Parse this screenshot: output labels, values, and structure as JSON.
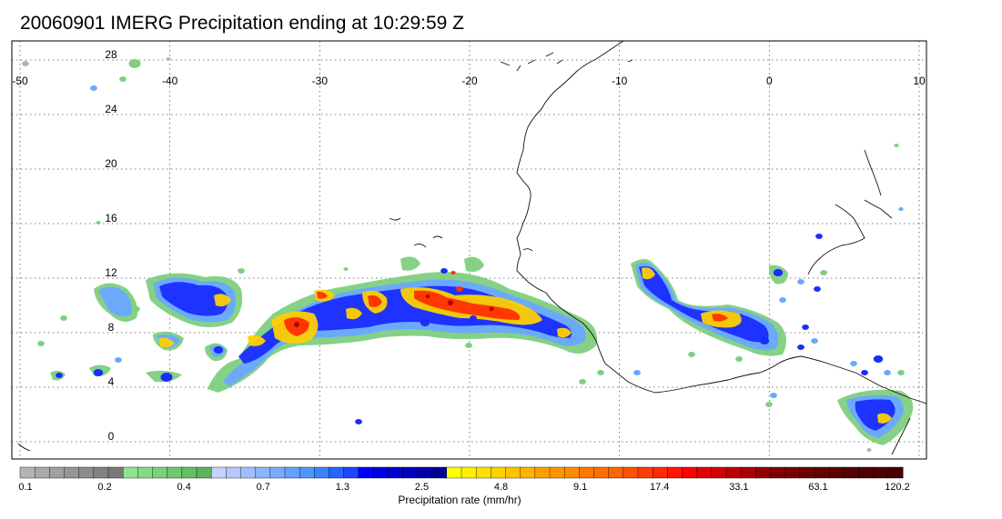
{
  "title": "20060901 IMERG Precipitation ending at 10:29:59 Z",
  "map": {
    "lon_range": [
      -50,
      10
    ],
    "lat_range": [
      -1,
      28
    ],
    "lon_ticks": [
      "-50",
      "-40",
      "-30",
      "-20",
      "-10",
      "0",
      "10"
    ],
    "lat_ticks": [
      "0",
      "4",
      "8",
      "12",
      "16",
      "20",
      "24",
      "28"
    ],
    "grid": "dotted"
  },
  "colorbar": {
    "title": "Precipitation rate (mm/hr)",
    "tick_labels": [
      "0.1",
      "0.2",
      "0.4",
      "0.7",
      "1.3",
      "2.5",
      "4.8",
      "9.1",
      "17.4",
      "33.1",
      "63.1",
      "120.2"
    ],
    "colors": [
      "#b4b4b4",
      "#aaaaaa",
      "#a0a0a0",
      "#969696",
      "#8c8c8c",
      "#828282",
      "#787878",
      "#8ce68c",
      "#82dc82",
      "#78d278",
      "#6ec86e",
      "#64be64",
      "#5ab45a",
      "#c8d2ff",
      "#b4c8ff",
      "#a0beff",
      "#8cb4ff",
      "#78aaff",
      "#64a0ff",
      "#5096ff",
      "#3c82ff",
      "#2864ff",
      "#1e46ff",
      "#0000ff",
      "#0000e6",
      "#0000d2",
      "#0000be",
      "#0000aa",
      "#000096",
      "#ffff00",
      "#fff000",
      "#ffe100",
      "#ffd200",
      "#ffc300",
      "#ffb400",
      "#ffa000",
      "#ff9600",
      "#ff8c00",
      "#ff7800",
      "#ff6e00",
      "#ff6400",
      "#ff5000",
      "#ff3c00",
      "#ff2800",
      "#ff1400",
      "#ff0000",
      "#e60000",
      "#d20000",
      "#be0000",
      "#aa0000",
      "#960000",
      "#820000",
      "#780000",
      "#6e0000",
      "#640000",
      "#5a0000",
      "#550000",
      "#500000",
      "#4b0000",
      "#460000"
    ]
  }
}
